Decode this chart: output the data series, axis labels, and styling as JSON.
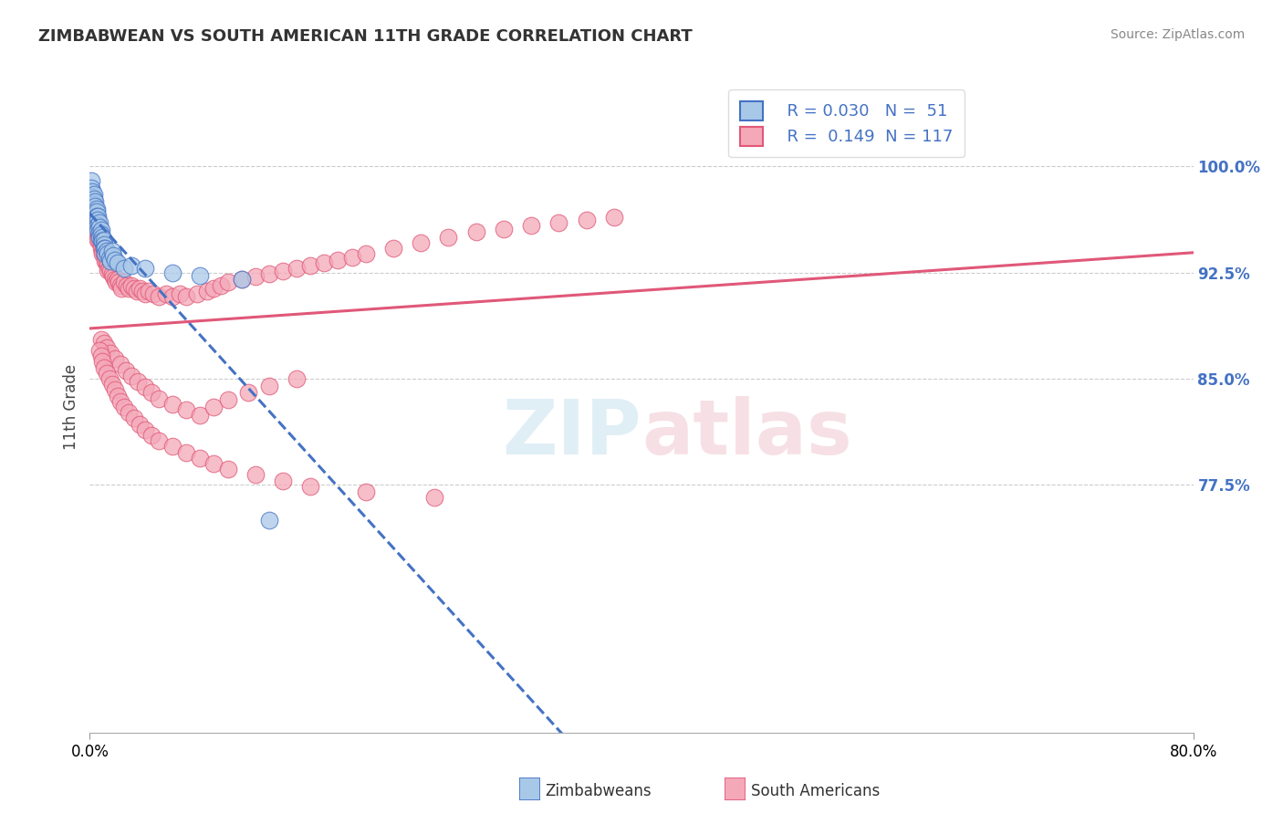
{
  "title": "ZIMBABWEAN VS SOUTH AMERICAN 11TH GRADE CORRELATION CHART",
  "source": "Source: ZipAtlas.com",
  "ylabel": "11th Grade",
  "y_tick_labels": [
    "77.5%",
    "85.0%",
    "92.5%",
    "100.0%"
  ],
  "y_tick_values": [
    0.775,
    0.85,
    0.925,
    1.0
  ],
  "x_range": [
    0.0,
    0.8
  ],
  "y_range": [
    0.6,
    1.06
  ],
  "legend_r_blue": "R = 0.030",
  "legend_n_blue": "N =  51",
  "legend_r_pink": "R =  0.149",
  "legend_n_pink": "N = 117",
  "blue_color": "#A8C8E8",
  "pink_color": "#F4A8B8",
  "blue_line_color": "#4472C4",
  "pink_line_color": "#E05878",
  "zimbabwean_x": [
    0.001,
    0.001,
    0.002,
    0.002,
    0.002,
    0.003,
    0.003,
    0.003,
    0.003,
    0.004,
    0.004,
    0.004,
    0.004,
    0.005,
    0.005,
    0.005,
    0.005,
    0.005,
    0.006,
    0.006,
    0.006,
    0.006,
    0.007,
    0.007,
    0.007,
    0.007,
    0.008,
    0.008,
    0.008,
    0.009,
    0.009,
    0.01,
    0.01,
    0.01,
    0.011,
    0.011,
    0.012,
    0.013,
    0.014,
    0.015,
    0.016,
    0.017,
    0.018,
    0.02,
    0.025,
    0.03,
    0.04,
    0.06,
    0.08,
    0.11,
    0.13
  ],
  "zimbabwean_y": [
    0.99,
    0.985,
    0.982,
    0.978,
    0.975,
    0.98,
    0.977,
    0.973,
    0.97,
    0.975,
    0.972,
    0.968,
    0.965,
    0.97,
    0.968,
    0.965,
    0.962,
    0.958,
    0.965,
    0.962,
    0.958,
    0.955,
    0.96,
    0.957,
    0.953,
    0.95,
    0.955,
    0.952,
    0.948,
    0.95,
    0.947,
    0.948,
    0.945,
    0.942,
    0.942,
    0.938,
    0.94,
    0.938,
    0.935,
    0.933,
    0.94,
    0.937,
    0.934,
    0.932,
    0.928,
    0.93,
    0.928,
    0.925,
    0.923,
    0.92,
    0.75
  ],
  "south_american_x": [
    0.003,
    0.004,
    0.005,
    0.005,
    0.006,
    0.006,
    0.007,
    0.007,
    0.008,
    0.008,
    0.009,
    0.009,
    0.01,
    0.01,
    0.011,
    0.011,
    0.012,
    0.012,
    0.013,
    0.013,
    0.014,
    0.015,
    0.016,
    0.017,
    0.018,
    0.019,
    0.02,
    0.021,
    0.022,
    0.023,
    0.025,
    0.027,
    0.028,
    0.03,
    0.032,
    0.034,
    0.036,
    0.038,
    0.04,
    0.043,
    0.046,
    0.05,
    0.055,
    0.06,
    0.065,
    0.07,
    0.078,
    0.085,
    0.09,
    0.095,
    0.1,
    0.11,
    0.12,
    0.13,
    0.14,
    0.15,
    0.16,
    0.17,
    0.18,
    0.19,
    0.2,
    0.22,
    0.24,
    0.26,
    0.28,
    0.3,
    0.32,
    0.34,
    0.36,
    0.38,
    0.008,
    0.01,
    0.012,
    0.015,
    0.018,
    0.022,
    0.026,
    0.03,
    0.035,
    0.04,
    0.045,
    0.05,
    0.06,
    0.07,
    0.08,
    0.09,
    0.1,
    0.115,
    0.13,
    0.15,
    0.007,
    0.008,
    0.009,
    0.01,
    0.012,
    0.014,
    0.016,
    0.018,
    0.02,
    0.022,
    0.025,
    0.028,
    0.032,
    0.036,
    0.04,
    0.045,
    0.05,
    0.06,
    0.07,
    0.08,
    0.09,
    0.1,
    0.12,
    0.14,
    0.16,
    0.2,
    0.25
  ],
  "south_american_y": [
    0.96,
    0.958,
    0.955,
    0.953,
    0.95,
    0.948,
    0.95,
    0.947,
    0.945,
    0.942,
    0.94,
    0.938,
    0.942,
    0.938,
    0.936,
    0.933,
    0.935,
    0.932,
    0.93,
    0.927,
    0.928,
    0.926,
    0.924,
    0.922,
    0.92,
    0.918,
    0.92,
    0.918,
    0.916,
    0.914,
    0.918,
    0.916,
    0.914,
    0.916,
    0.914,
    0.912,
    0.914,
    0.912,
    0.91,
    0.912,
    0.91,
    0.908,
    0.91,
    0.908,
    0.91,
    0.908,
    0.91,
    0.912,
    0.914,
    0.916,
    0.918,
    0.92,
    0.922,
    0.924,
    0.926,
    0.928,
    0.93,
    0.932,
    0.934,
    0.936,
    0.938,
    0.942,
    0.946,
    0.95,
    0.954,
    0.956,
    0.958,
    0.96,
    0.962,
    0.964,
    0.878,
    0.875,
    0.872,
    0.868,
    0.864,
    0.86,
    0.856,
    0.852,
    0.848,
    0.844,
    0.84,
    0.836,
    0.832,
    0.828,
    0.824,
    0.83,
    0.835,
    0.84,
    0.845,
    0.85,
    0.87,
    0.866,
    0.862,
    0.858,
    0.854,
    0.85,
    0.846,
    0.842,
    0.838,
    0.834,
    0.83,
    0.826,
    0.822,
    0.818,
    0.814,
    0.81,
    0.806,
    0.802,
    0.798,
    0.794,
    0.79,
    0.786,
    0.782,
    0.778,
    0.774,
    0.77,
    0.766
  ]
}
